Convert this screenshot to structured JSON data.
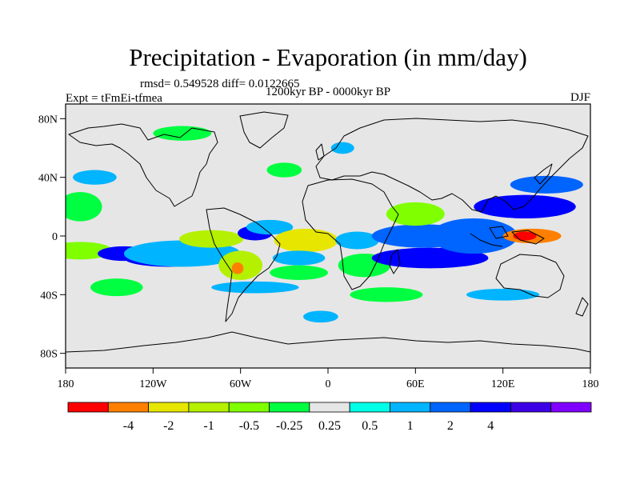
{
  "chart_data": {
    "type": "heatmap",
    "title": "Precipitation - Evaporation (in mm/day)",
    "stats_line": "rmsd= 0.549528 diff= 0.0122665",
    "period_line": "1200kyr BP - 0000kyr BP",
    "experiment_label": "Expt = tFmEi-tfmea",
    "season_label": "DJF",
    "x_ticks": [
      {
        "value": -180,
        "label": "180"
      },
      {
        "value": -120,
        "label": "120W"
      },
      {
        "value": -60,
        "label": "60W"
      },
      {
        "value": 0,
        "label": "0"
      },
      {
        "value": 60,
        "label": "60E"
      },
      {
        "value": 120,
        "label": "120E"
      },
      {
        "value": 180,
        "label": "180"
      }
    ],
    "y_ticks": [
      {
        "value": 80,
        "label": "80N"
      },
      {
        "value": 40,
        "label": "40N"
      },
      {
        "value": 0,
        "label": "0"
      },
      {
        "value": -40,
        "label": "40S"
      },
      {
        "value": -80,
        "label": "80S"
      }
    ],
    "xlim": [
      -180,
      180
    ],
    "ylim": [
      -90,
      90
    ],
    "colorbar": {
      "colors": [
        "#ff0000",
        "#ff8000",
        "#e6e600",
        "#b4f000",
        "#80ff00",
        "#00ff40",
        "#e6e6e6",
        "#00ffe6",
        "#00b4ff",
        "#0064ff",
        "#0000ff",
        "#3c00e6",
        "#8000ff"
      ],
      "labels": [
        "-4",
        "-2",
        "-1",
        "-0.5",
        "-0.25",
        "0.25",
        "0.5",
        "1",
        "2",
        "4"
      ]
    },
    "anomaly_regions": [
      {
        "lon": -170,
        "lat": -10,
        "rlon": 22,
        "rlat": 6,
        "level": 4
      },
      {
        "lon": -140,
        "lat": -12,
        "rlon": 18,
        "rlat": 5,
        "level": 10
      },
      {
        "lon": -110,
        "lat": -15,
        "rlon": 30,
        "rlat": 6,
        "level": 10
      },
      {
        "lon": -100,
        "lat": -12,
        "rlon": 40,
        "rlat": 9,
        "level": 8
      },
      {
        "lon": -80,
        "lat": -2,
        "rlon": 22,
        "rlat": 6,
        "level": 3
      },
      {
        "lon": -50,
        "lat": 2,
        "rlon": 12,
        "rlat": 5,
        "level": 10
      },
      {
        "lon": -40,
        "lat": 6,
        "rlon": 16,
        "rlat": 5,
        "level": 8
      },
      {
        "lon": -15,
        "lat": -3,
        "rlon": 22,
        "rlat": 8,
        "level": 2
      },
      {
        "lon": -60,
        "lat": -20,
        "rlon": 15,
        "rlat": 10,
        "level": 3
      },
      {
        "lon": -62,
        "lat": -22,
        "rlon": 4,
        "rlat": 4,
        "level": 1
      },
      {
        "lon": -20,
        "lat": -15,
        "rlon": 18,
        "rlat": 5,
        "level": 8
      },
      {
        "lon": 20,
        "lat": -3,
        "rlon": 15,
        "rlat": 6,
        "level": 8
      },
      {
        "lon": 25,
        "lat": -20,
        "rlon": 18,
        "rlat": 8,
        "level": 5
      },
      {
        "lon": 70,
        "lat": -15,
        "rlon": 40,
        "rlat": 7,
        "level": 10
      },
      {
        "lon": 65,
        "lat": 0,
        "rlon": 35,
        "rlat": 8,
        "level": 9
      },
      {
        "lon": 100,
        "lat": 0,
        "rlon": 30,
        "rlat": 12,
        "level": 9
      },
      {
        "lon": 135,
        "lat": 20,
        "rlon": 35,
        "rlat": 8,
        "level": 10
      },
      {
        "lon": 150,
        "lat": 35,
        "rlon": 25,
        "rlat": 6,
        "level": 9
      },
      {
        "lon": 140,
        "lat": 0,
        "rlon": 20,
        "rlat": 5,
        "level": 1
      },
      {
        "lon": 135,
        "lat": 0,
        "rlon": 8,
        "rlat": 3,
        "level": 0
      },
      {
        "lon": -170,
        "lat": 20,
        "rlon": 15,
        "rlat": 10,
        "level": 5
      },
      {
        "lon": -160,
        "lat": 40,
        "rlon": 15,
        "rlat": 5,
        "level": 8
      },
      {
        "lon": -100,
        "lat": 70,
        "rlon": 20,
        "rlat": 5,
        "level": 5
      },
      {
        "lon": -30,
        "lat": 45,
        "rlon": 12,
        "rlat": 5,
        "level": 5
      },
      {
        "lon": 60,
        "lat": 15,
        "rlon": 20,
        "rlat": 8,
        "level": 4
      },
      {
        "lon": 10,
        "lat": 60,
        "rlon": 8,
        "rlat": 4,
        "level": 8
      },
      {
        "lon": -145,
        "lat": -35,
        "rlon": 18,
        "rlat": 6,
        "level": 5
      },
      {
        "lon": -50,
        "lat": -35,
        "rlon": 30,
        "rlat": 4,
        "level": 8
      },
      {
        "lon": 120,
        "lat": -40,
        "rlon": 25,
        "rlat": 4,
        "level": 8
      },
      {
        "lon": -5,
        "lat": -55,
        "rlon": 12,
        "rlat": 4,
        "level": 8
      },
      {
        "lon": 40,
        "lat": -40,
        "rlon": 25,
        "rlat": 5,
        "level": 5
      },
      {
        "lon": -20,
        "lat": -25,
        "rlon": 20,
        "rlat": 5,
        "level": 5
      }
    ]
  }
}
